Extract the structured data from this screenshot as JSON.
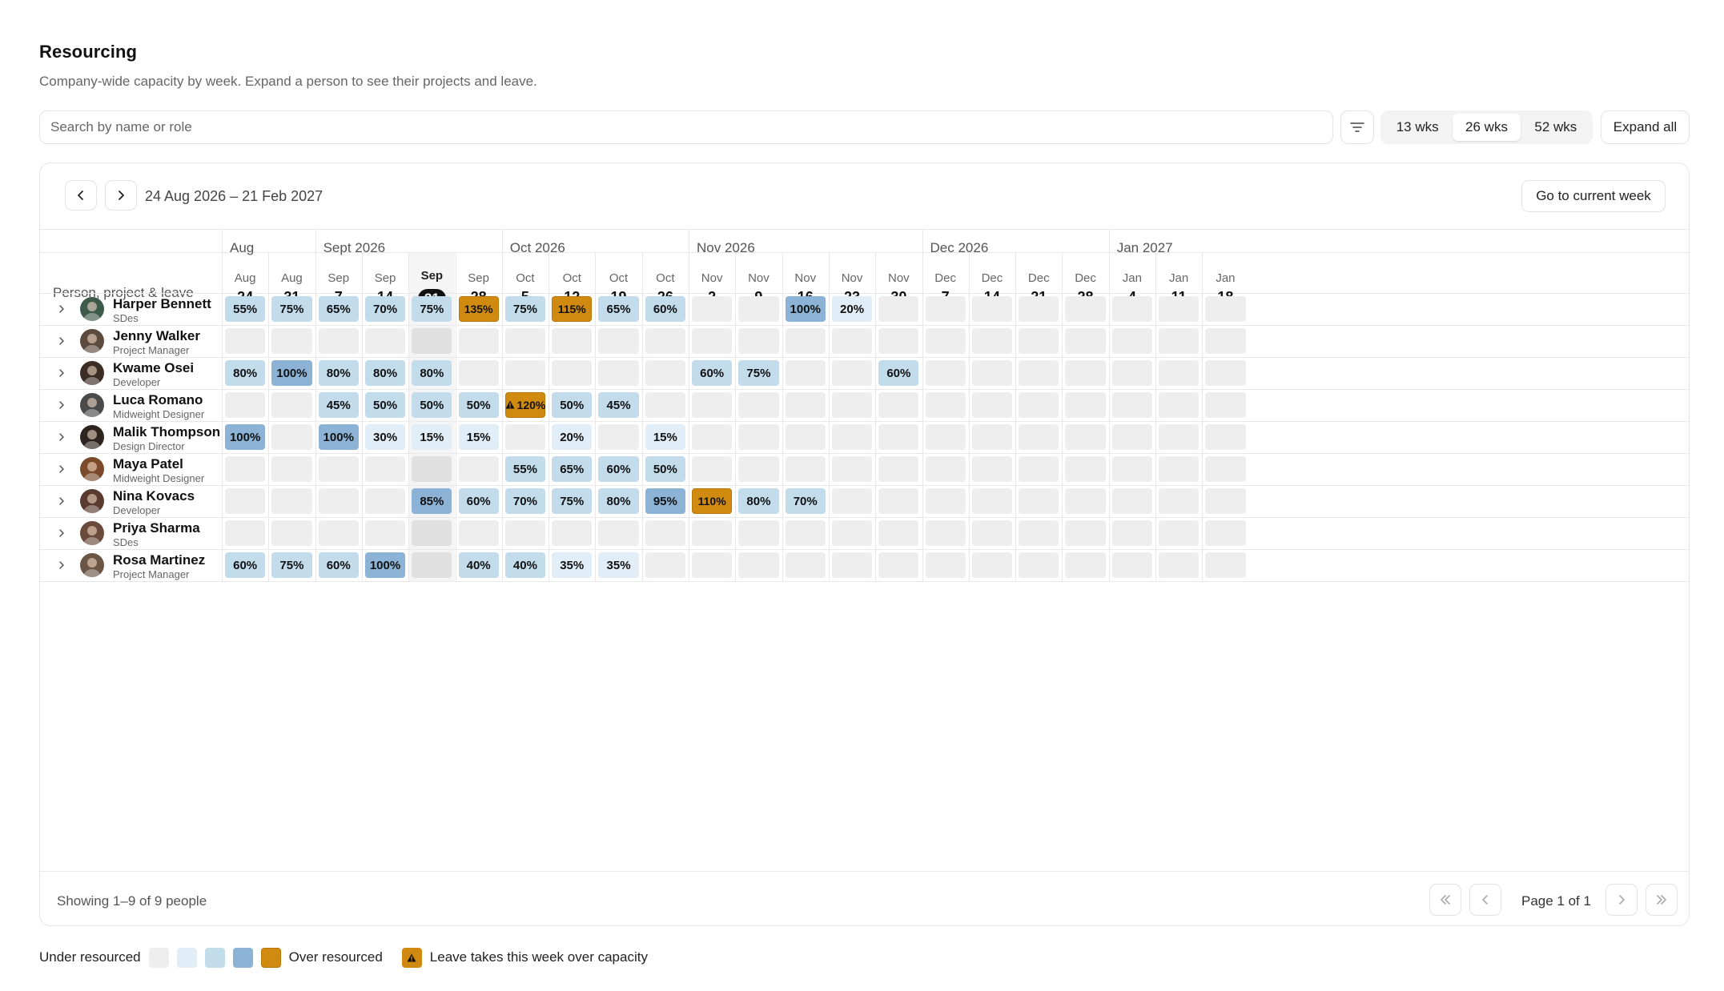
{
  "header": {
    "title": "Resourcing",
    "subtitle": "Company-wide capacity by week. Expand a person to see their projects and leave."
  },
  "toolbar": {
    "search_placeholder": "Search by name or role",
    "range_options": [
      {
        "label": "13 wks",
        "active": false
      },
      {
        "label": "26 wks",
        "active": true
      },
      {
        "label": "52 wks",
        "active": false
      }
    ],
    "expand_label": "Expand all"
  },
  "calendar": {
    "range_label": "24 Aug 2026 – 21 Feb 2027",
    "current_week_label": "Go to current week",
    "column_header": "Person, project & leave",
    "months": [
      {
        "label": "Aug",
        "span": 2
      },
      {
        "label": "Sept 2026",
        "span": 4
      },
      {
        "label": "Oct 2026",
        "span": 4
      },
      {
        "label": "Nov 2026",
        "span": 5
      },
      {
        "label": "Dec 2026",
        "span": 4
      },
      {
        "label": "Jan 2027",
        "span": 3
      }
    ],
    "weeks": [
      {
        "mon": "Aug",
        "day": "24"
      },
      {
        "mon": "Aug",
        "day": "31"
      },
      {
        "mon": "Sep",
        "day": "7"
      },
      {
        "mon": "Sep",
        "day": "14"
      },
      {
        "mon": "Sep",
        "day": "21",
        "current": true
      },
      {
        "mon": "Sep",
        "day": "28"
      },
      {
        "mon": "Oct",
        "day": "5"
      },
      {
        "mon": "Oct",
        "day": "12"
      },
      {
        "mon": "Oct",
        "day": "19"
      },
      {
        "mon": "Oct",
        "day": "26"
      },
      {
        "mon": "Nov",
        "day": "2"
      },
      {
        "mon": "Nov",
        "day": "9"
      },
      {
        "mon": "Nov",
        "day": "16"
      },
      {
        "mon": "Nov",
        "day": "23"
      },
      {
        "mon": "Nov",
        "day": "30"
      },
      {
        "mon": "Dec",
        "day": "7"
      },
      {
        "mon": "Dec",
        "day": "14"
      },
      {
        "mon": "Dec",
        "day": "21"
      },
      {
        "mon": "Dec",
        "day": "28"
      },
      {
        "mon": "Jan",
        "day": "4"
      },
      {
        "mon": "Jan",
        "day": "11"
      },
      {
        "mon": "Jan",
        "day": "18"
      }
    ]
  },
  "people": [
    {
      "name": "Harper Bennett",
      "role": "SDes",
      "avatar_color": "#3e5a4a",
      "cells": [
        "55%",
        "75%",
        "65%",
        "70%",
        "75%",
        "!135%",
        "75%",
        "!115%",
        "65%",
        "60%",
        "",
        "",
        "100%",
        "20%",
        "",
        "",
        "",
        "",
        "",
        "",
        "",
        ""
      ]
    },
    {
      "name": "Jenny Walker",
      "role": "Project Manager",
      "avatar_color": "#5d4a3f",
      "cells": [
        "",
        "",
        "",
        "",
        "",
        "",
        "",
        "",
        "",
        "",
        "",
        "",
        "",
        "",
        "",
        "",
        "",
        "",
        "",
        "",
        "",
        ""
      ]
    },
    {
      "name": "Kwame Osei",
      "role": "Developer",
      "avatar_color": "#3b2c24",
      "cells": [
        "80%",
        "100%",
        "80%",
        "80%",
        "80%",
        "",
        "",
        "",
        "",
        "",
        "60%",
        "75%",
        "",
        "",
        "60%",
        "",
        "",
        "",
        "",
        "",
        "",
        ""
      ]
    },
    {
      "name": "Luca Romano",
      "role": "Midweight Designer",
      "avatar_color": "#4a4a4a",
      "cells": [
        "",
        "",
        "45%",
        "50%",
        "50%",
        "50%",
        "!w120%",
        "50%",
        "45%",
        "",
        "",
        "",
        "",
        "",
        "",
        "",
        "",
        "",
        "",
        "",
        "",
        ""
      ]
    },
    {
      "name": "Malik Thompson",
      "role": "Design Director",
      "avatar_color": "#2d241f",
      "cells": [
        "100%",
        "",
        "100%",
        "30%",
        "15%",
        "15%",
        "",
        "20%",
        "",
        "15%",
        "",
        "",
        "",
        "",
        "",
        "",
        "",
        "",
        "",
        "",
        "",
        ""
      ]
    },
    {
      "name": "Maya Patel",
      "role": "Midweight Designer",
      "avatar_color": "#7a4a2a",
      "cells": [
        "",
        "",
        "",
        "",
        "",
        "",
        "55%",
        "65%",
        "60%",
        "50%",
        "",
        "",
        "",
        "",
        "",
        "",
        "",
        "",
        "",
        "",
        "",
        ""
      ]
    },
    {
      "name": "Nina Kovacs",
      "role": "Developer",
      "avatar_color": "#5a3a2e",
      "cells": [
        "",
        "",
        "",
        "",
        "85%",
        "60%",
        "70%",
        "75%",
        "80%",
        "95%",
        "!110%",
        "80%",
        "70%",
        "",
        "",
        "",
        "",
        "",
        "",
        "",
        "",
        ""
      ]
    },
    {
      "name": "Priya Sharma",
      "role": "SDes",
      "avatar_color": "#6a4a3a",
      "cells": [
        "",
        "",
        "",
        "",
        "",
        "",
        "",
        "",
        "",
        "",
        "",
        "",
        "",
        "",
        "",
        "",
        "",
        "",
        "",
        "",
        "",
        ""
      ]
    },
    {
      "name": "Rosa Martinez",
      "role": "Project Manager",
      "avatar_color": "#6b5544",
      "cells": [
        "60%",
        "75%",
        "60%",
        "100%",
        "",
        "40%",
        "40%",
        "35%",
        "35%",
        "",
        "",
        "",
        "",
        "",
        "",
        "",
        "",
        "",
        "",
        "",
        "",
        ""
      ]
    }
  ],
  "footer": {
    "showing": "Showing 1–9 of 9 people",
    "page": "Page 1 of 1"
  },
  "legend": {
    "under_label": "Under resourced",
    "over_label": "Over resourced",
    "leave_label": "Leave takes this week over capacity",
    "swatch_colors": [
      "#eeeeee",
      "#e2eef7",
      "#c3dcec",
      "#8cb3d6",
      "#d08a10"
    ]
  },
  "colors": {
    "light": "#e2eef7",
    "mid": "#c3dcec",
    "strong": "#8cb3d6",
    "over": "#d08a10",
    "empty": "#eeeeee"
  }
}
